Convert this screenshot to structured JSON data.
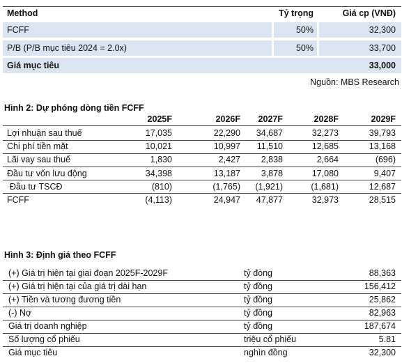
{
  "valuation_table": {
    "header": [
      "Method",
      "Tỷ trọng",
      "Giá cp (VNĐ)"
    ],
    "rows": [
      [
        "FCFF",
        "50%",
        "32,300"
      ],
      [
        "P/B (P/B mục tiêu 2024 = 2.0x)",
        "50%",
        "33,700"
      ]
    ],
    "total": {
      "label": "Giá mục tiêu",
      "value": "33,000"
    },
    "source": "Nguồn: MBS Research"
  },
  "figure2": {
    "title": "Hình 2: Dự phóng dòng tiền FCFF",
    "columns": [
      "2025F",
      "2026F",
      "2027F",
      "2028F",
      "2029F"
    ],
    "rows": [
      [
        "Lợi nhuận sau thuế",
        "17,035",
        "22,290",
        "34,687",
        "32,273",
        "39,793"
      ],
      [
        "Chi phí tiền mặt",
        "10,021",
        "10,997",
        "11,510",
        "12,685",
        "13,168"
      ],
      [
        "Lãi vay sau thuế",
        "1,830",
        "2,427",
        "2,838",
        "2,664",
        "(696)"
      ],
      [
        "Đầu tư vốn lưu động",
        "34,398",
        "13,187",
        "3,878",
        "17,080",
        "9,407"
      ],
      [
        "Đầu tư TSCĐ",
        "(810)",
        "(1,765)",
        "(1,921)",
        "(1,681)",
        "12,687"
      ],
      [
        "FCFF",
        "(4,113)",
        "24,947",
        "47,877",
        "32,973",
        "28,515"
      ]
    ]
  },
  "figure3": {
    "title": "Hình 3: Định giá theo FCFF",
    "rows": [
      [
        "(+) Giá trị hiện tại giai đoạn 2025F-2029F",
        "tỷ đòng",
        "88,363"
      ],
      [
        "(+) Giá trị hiện tại của giá trị dài hạn",
        "tỷ đồng",
        "156,412"
      ],
      [
        "(+) Tiền và tương đương tiền",
        "tỷ đồng",
        "25,862"
      ],
      [
        "(-) Nợ",
        "tỷ đồng",
        "82,963"
      ],
      [
        "Giá trị doanh nghiệp",
        "tỷ đồng",
        "187,674"
      ],
      [
        "Số lượng cổ phiếu",
        "triệu cổ phiếu",
        "5.81"
      ],
      [
        "Giá mục tiêu",
        "nghìn đồng",
        "32,300"
      ]
    ]
  }
}
